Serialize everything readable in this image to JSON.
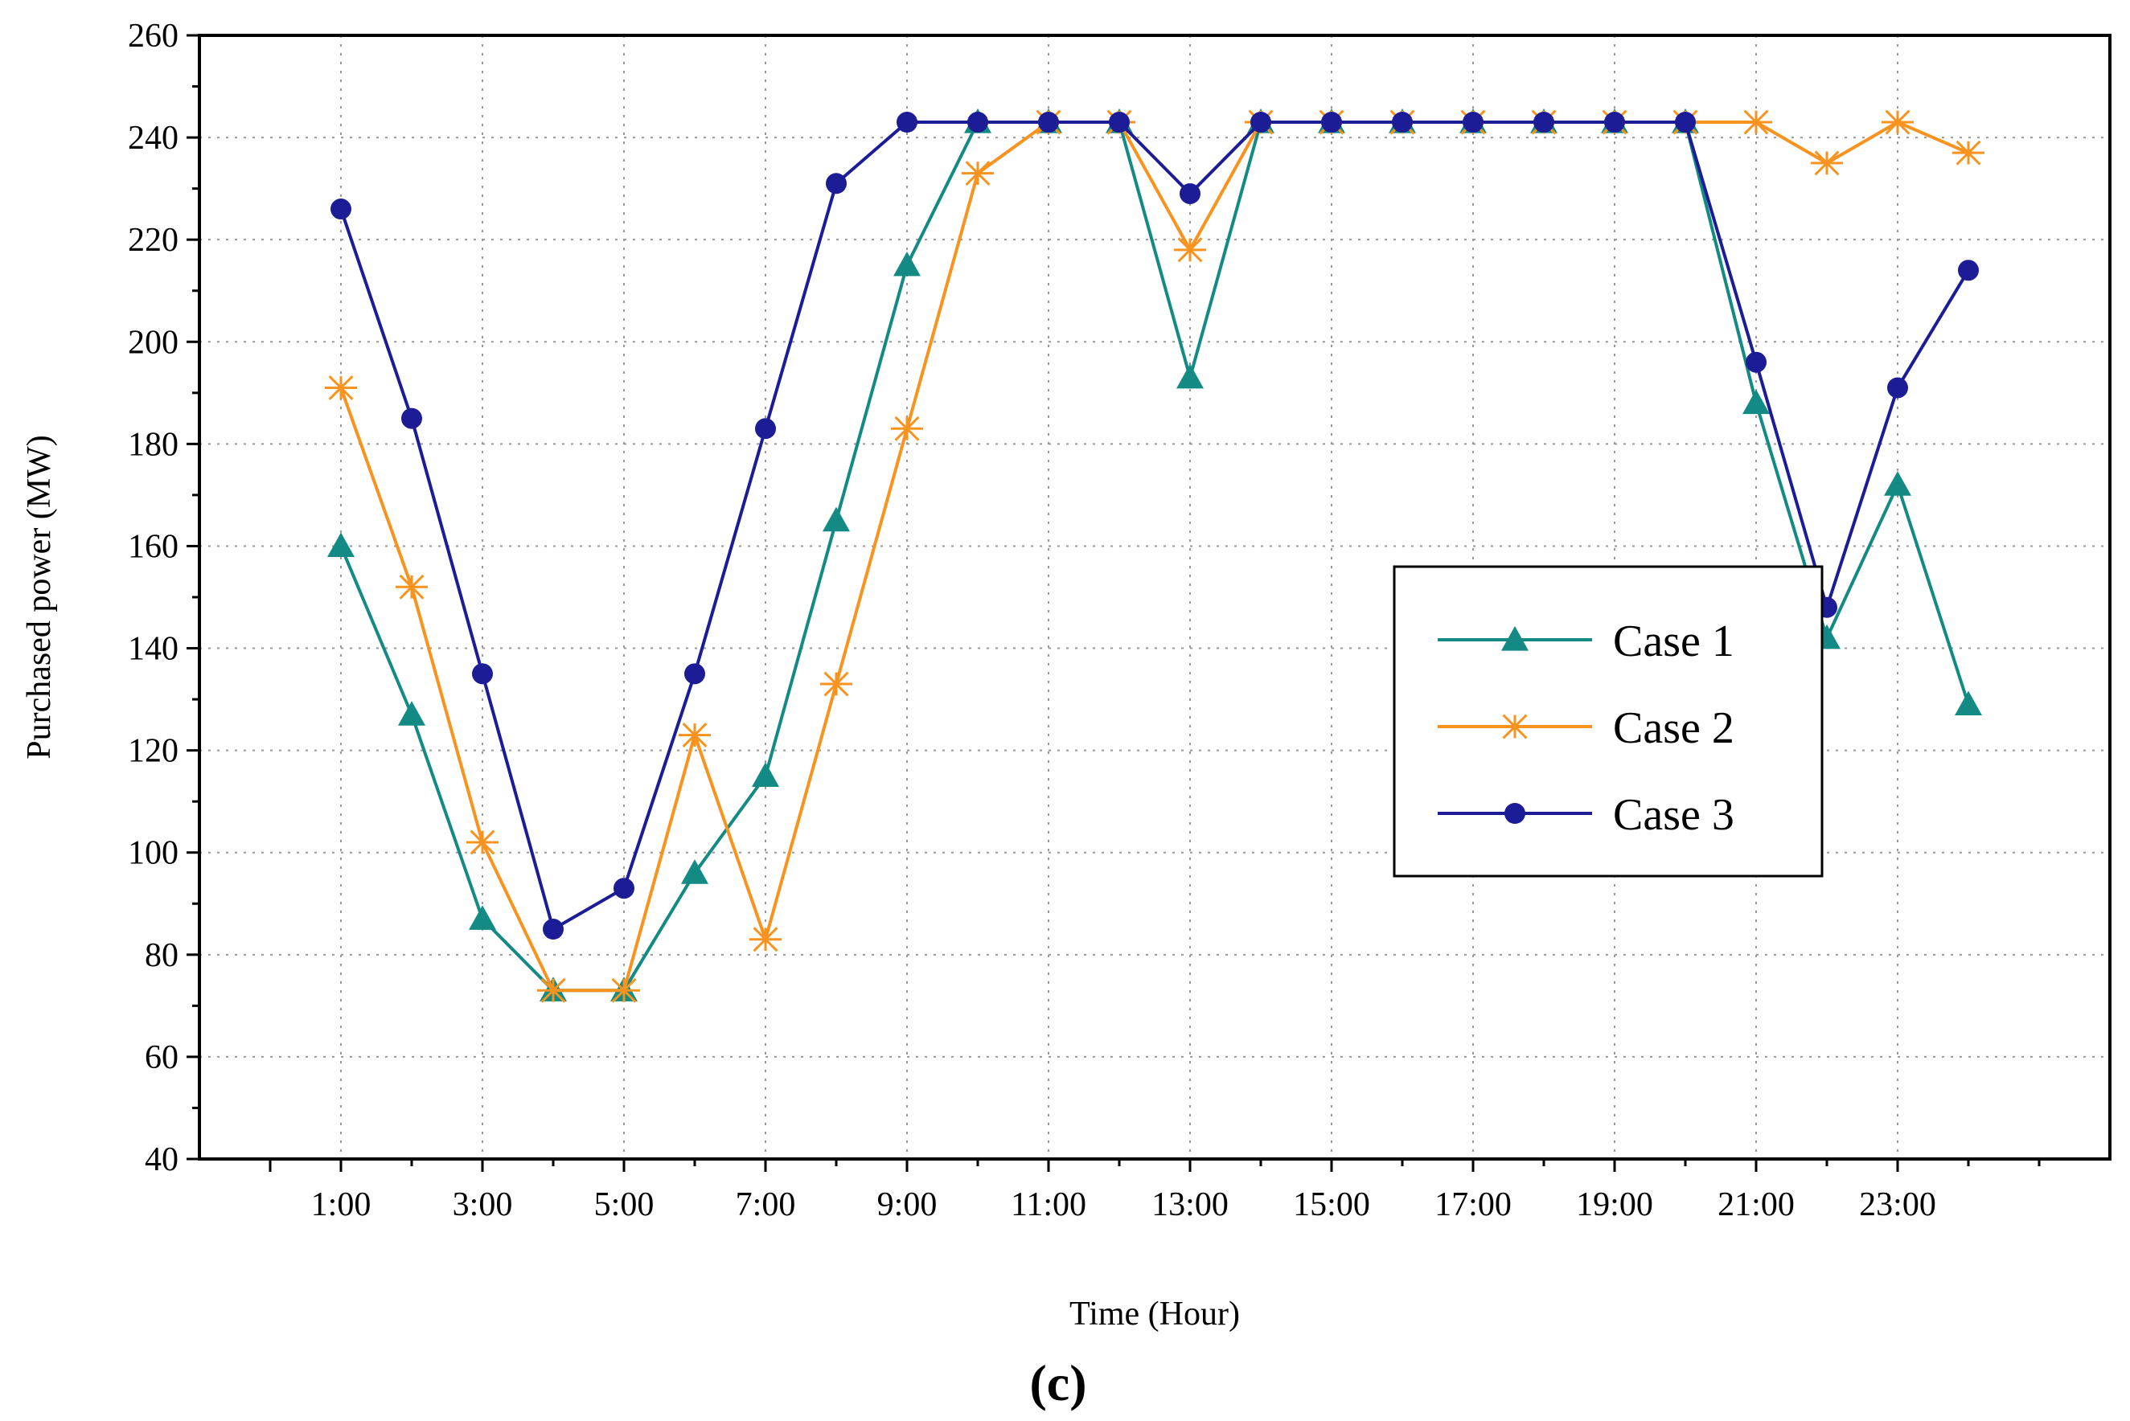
{
  "chart_data": {
    "type": "line",
    "title": "",
    "xlabel": "Time (Hour)",
    "ylabel": "Purchased power (MW)",
    "caption": "(c)",
    "x": [
      1,
      2,
      3,
      4,
      5,
      6,
      7,
      8,
      9,
      10,
      11,
      12,
      13,
      14,
      15,
      16,
      17,
      18,
      19,
      20,
      21,
      22,
      23,
      24
    ],
    "xlim": [
      -1,
      26
    ],
    "ylim": [
      40,
      260
    ],
    "yticks": [
      40,
      60,
      80,
      100,
      120,
      140,
      160,
      180,
      200,
      220,
      240,
      260
    ],
    "xtick_labels": [
      {
        "x": 1,
        "label": "1:00"
      },
      {
        "x": 3,
        "label": "3:00"
      },
      {
        "x": 5,
        "label": "5:00"
      },
      {
        "x": 7,
        "label": "7:00"
      },
      {
        "x": 9,
        "label": "9:00"
      },
      {
        "x": 11,
        "label": "11:00"
      },
      {
        "x": 13,
        "label": "13:00"
      },
      {
        "x": 15,
        "label": "15:00"
      },
      {
        "x": 17,
        "label": "17:00"
      },
      {
        "x": 19,
        "label": "19:00"
      },
      {
        "x": 21,
        "label": "21:00"
      },
      {
        "x": 23,
        "label": "23:00"
      }
    ],
    "grid": true,
    "legend_position": "center-right",
    "series": [
      {
        "name": "Case 1",
        "color": "#138a84",
        "marker": "triangle",
        "values": [
          160,
          127,
          87,
          73,
          73,
          96,
          115,
          165,
          215,
          243,
          243,
          243,
          193,
          243,
          243,
          243,
          243,
          243,
          243,
          243,
          188,
          142,
          172,
          129
        ]
      },
      {
        "name": "Case 2",
        "color": "#f7931e",
        "marker": "star",
        "values": [
          191,
          152,
          102,
          73,
          73,
          123,
          83,
          133,
          183,
          233,
          243,
          243,
          218,
          243,
          243,
          243,
          243,
          243,
          243,
          243,
          243,
          235,
          243,
          237
        ]
      },
      {
        "name": "Case 3",
        "color": "#1c1c96",
        "marker": "circle",
        "values": [
          226,
          185,
          135,
          85,
          93,
          135,
          183,
          231,
          243,
          243,
          243,
          243,
          229,
          243,
          243,
          243,
          243,
          243,
          243,
          243,
          196,
          148,
          191,
          214
        ]
      }
    ]
  }
}
